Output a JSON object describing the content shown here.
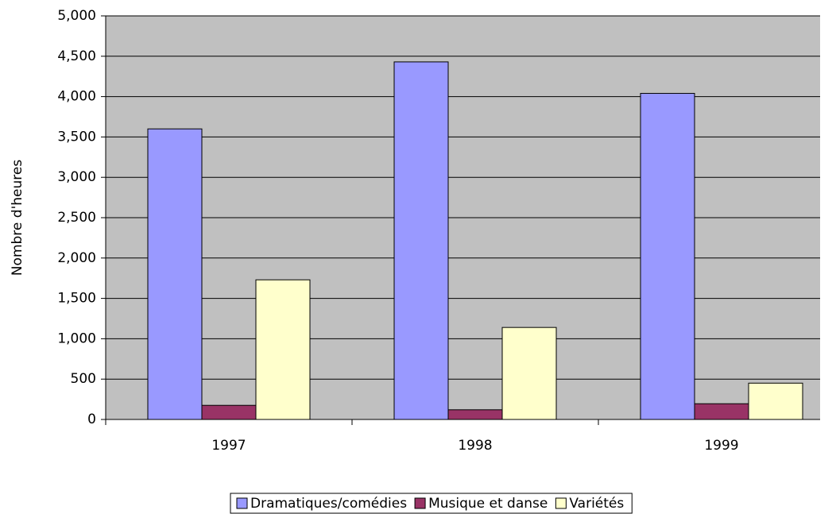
{
  "chart_data": {
    "type": "bar",
    "y_label": "Nombre d'heures",
    "categories": [
      "1997",
      "1998",
      "1999"
    ],
    "series": [
      {
        "name": "Dramatiques/comédies",
        "color": "#9999ff",
        "values": [
          3600,
          4430,
          4040
        ]
      },
      {
        "name": "Musique et danse",
        "color": "#993366",
        "values": [
          175,
          120,
          195
        ]
      },
      {
        "name": "Variétés",
        "color": "#ffffcc",
        "values": [
          1730,
          1140,
          450
        ]
      }
    ],
    "ylim": [
      0,
      5000
    ],
    "yticks": [
      0,
      500,
      {
        "value": 1000,
        "label": "1,000"
      },
      {
        "value": 1500,
        "label": "1,500"
      },
      {
        "value": 2000,
        "label": "2,000"
      },
      {
        "value": 2500,
        "label": "2,500"
      },
      {
        "value": 3000,
        "label": "3,000"
      },
      {
        "value": 3500,
        "label": "3,500"
      },
      {
        "value": 4000,
        "label": "4,000"
      },
      {
        "value": 4500,
        "label": "4,500"
      },
      {
        "value": 5000,
        "label": "5,000"
      }
    ],
    "grid": true,
    "plot_background": "#c0c0c0",
    "legend": "bottom"
  }
}
